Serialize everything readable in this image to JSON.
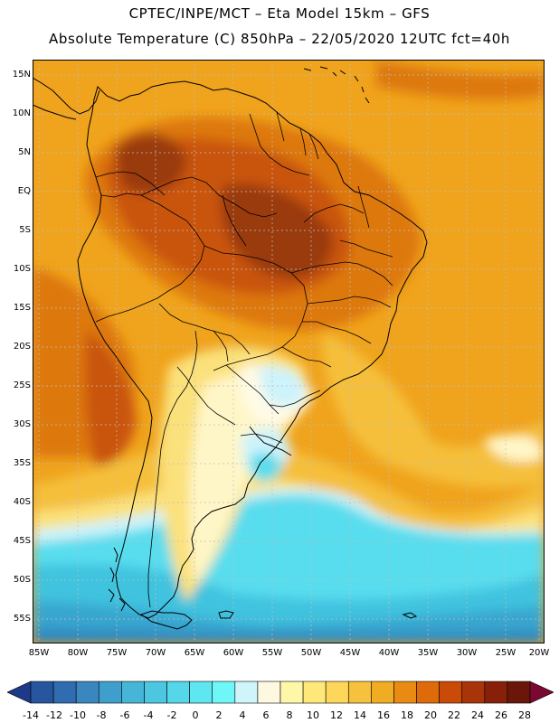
{
  "header": {
    "line1": "CPTEC/INPE/MCT –  Eta Model 15km – GFS",
    "line2": "Absolute Temperature (C) 850hPa – 22/05/2020 12UTC fct=40h"
  },
  "latitude_labels": [
    "15N",
    "10N",
    "5N",
    "EQ",
    "5S",
    "10S",
    "15S",
    "20S",
    "25S",
    "30S",
    "35S",
    "40S",
    "45S",
    "50S",
    "55S"
  ],
  "longitude_labels": [
    "85W",
    "80W",
    "75W",
    "70W",
    "65W",
    "60W",
    "55W",
    "50W",
    "45W",
    "40W",
    "35W",
    "30W",
    "25W",
    "20W"
  ],
  "colorbar": {
    "labels": [
      "-14",
      "-12",
      "-10",
      "-8",
      "-6",
      "-4",
      "-2",
      "0",
      "2",
      "4",
      "6",
      "8",
      "10",
      "12",
      "14",
      "16",
      "18",
      "20",
      "22",
      "24",
      "26",
      "28"
    ],
    "colors": [
      "#1d3a8a",
      "#27569f",
      "#2f6db0",
      "#3a86bf",
      "#3f9fcc",
      "#45b6d7",
      "#4cc7e1",
      "#55d7ea",
      "#5ee7f1",
      "#6ff7f7",
      "#cff5fb",
      "#fff8e1",
      "#fff7a8",
      "#ffe87a",
      "#fdd65a",
      "#f6c13c",
      "#f0ac23",
      "#e98b12",
      "#df6a0a",
      "#c94b07",
      "#a8340a",
      "#882009",
      "#6a170a",
      "#7a0830"
    ]
  },
  "legend_colors": {
    "deep_hot": "#9a3a0c",
    "hot": "#c9540b",
    "warm_orange": "#dd780c",
    "orange": "#f0a31c",
    "gold": "#f5bf3a",
    "yellow": "#fbe17c",
    "pale": "#fff6c8",
    "cream": "#fffae6",
    "ice": "#cdf3fb",
    "cyan": "#58ddee",
    "cyan_mid": "#3fc3df",
    "blue_mid": "#38a6cf",
    "blue_deep": "#2d86c0"
  }
}
